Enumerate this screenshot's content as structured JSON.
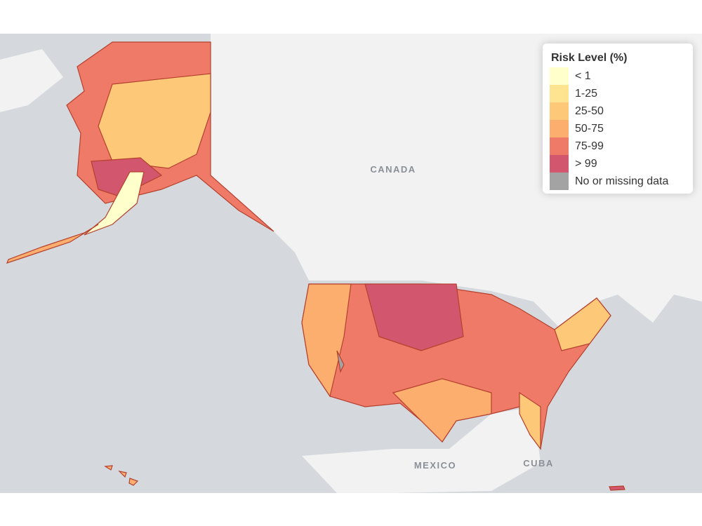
{
  "map_labels": [
    "CANADA",
    "MEXICO",
    "CUBA"
  ],
  "legend": {
    "title": "Risk Level (%)",
    "items": [
      {
        "label": "< 1",
        "color": "#ffffcc"
      },
      {
        "label": "1-25",
        "color": "#fee391"
      },
      {
        "label": "25-50",
        "color": "#fec879"
      },
      {
        "label": "50-75",
        "color": "#fcae6e"
      },
      {
        "label": "75-99",
        "color": "#f07a68"
      },
      {
        "label": "> 99",
        "color": "#d2576e"
      },
      {
        "label": "No or missing data",
        "color": "#a3a3a3"
      }
    ]
  }
}
